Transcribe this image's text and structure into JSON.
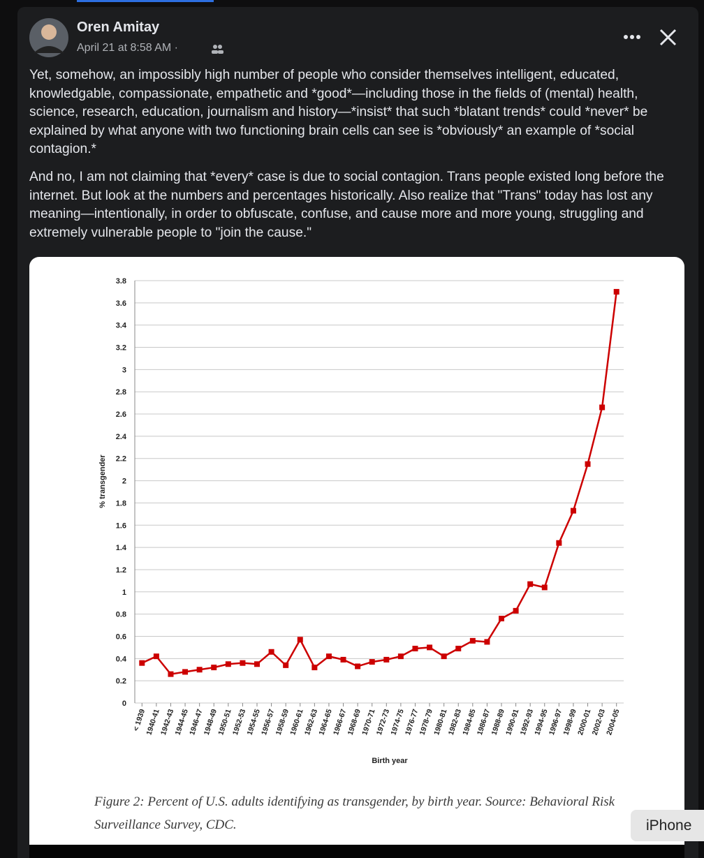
{
  "post": {
    "author": "Oren Amitay",
    "time": "April 21 at 8:58 AM",
    "separator": "·",
    "paragraphs": [
      "Yet, somehow, an impossibly high number of people who consider themselves intelligent, educated, knowledgable, compassionate, empathetic and *good*—including those in the fields of (mental) health, science, research, education, journalism and history—*insist* that such *blatant trends* could *never* be explained by what anyone with two functioning brain cells can see is *obviously* an example of *social contagion.*",
      "And no, I am not claiming that *every* case is due to social contagion. Trans people existed long before the internet. But look at the numbers and percentages historically. Also realize that \"Trans\" today has lost any meaning—intentionally, in order to obfuscate, confuse, and cause more and more young, struggling and extremely vulnerable people to \"join the cause.\""
    ],
    "tooltip": "iPhone"
  },
  "chart_data": {
    "type": "line",
    "y_label": "% transgender",
    "x_label": "Birth year",
    "caption": "Figure 2: Percent of U.S. adults identifying as transgender, by birth year. Source: Behavioral Risk Surveillance Survey, CDC.",
    "categories": [
      "< 1939",
      "1940-41",
      "1942-43",
      "1944-45",
      "1946-47",
      "1948-49",
      "1950-51",
      "1952-53",
      "1954-55",
      "1956-57",
      "1958-59",
      "1960-61",
      "1962-63",
      "1964-65",
      "1966-67",
      "1968-69",
      "1970-71",
      "1972-73",
      "1974-75",
      "1976-77",
      "1978-79",
      "1980-81",
      "1982-83",
      "1984-85",
      "1986-87",
      "1988-89",
      "1990-91",
      "1992-93",
      "1994-95",
      "1996-97",
      "1998-99",
      "2000-01",
      "2002-03",
      "2004-05"
    ],
    "values": [
      0.36,
      0.42,
      0.26,
      0.28,
      0.3,
      0.32,
      0.35,
      0.36,
      0.35,
      0.46,
      0.34,
      0.57,
      0.32,
      0.42,
      0.39,
      0.33,
      0.37,
      0.39,
      0.42,
      0.49,
      0.5,
      0.42,
      0.49,
      0.56,
      0.55,
      0.76,
      0.83,
      1.07,
      1.04,
      1.44,
      1.73,
      2.15,
      2.66,
      3.7
    ],
    "color": "#cc0000",
    "ylim": [
      0,
      3.8
    ],
    "yticks": [
      0,
      0.2,
      0.4,
      0.6,
      0.8,
      1,
      1.2,
      1.4,
      1.6,
      1.8,
      2,
      2.2,
      2.4,
      2.6,
      2.8,
      3,
      3.2,
      3.4,
      3.6,
      3.8
    ],
    "grid": true
  }
}
